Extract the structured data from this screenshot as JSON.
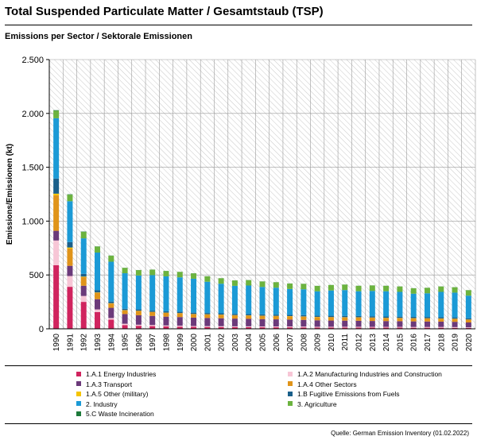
{
  "title": "Total Suspended Particulate Matter / Gesamtstaub (TSP)",
  "subtitle": "Emissions per Sector / Sektorale Emissionen",
  "source": "Quelle: German Emission Inventory (01.02.2022)",
  "chart_data": {
    "type": "bar",
    "stacked": true,
    "ylabel": "Emissions/Emissionen (kt)",
    "ylim": [
      0,
      2500
    ],
    "yticks": [
      0,
      500,
      1000,
      1500,
      2000,
      2500
    ],
    "ytick_labels": [
      "0",
      "500",
      "1.000",
      "1.500",
      "2.000",
      "2.500"
    ],
    "categories": [
      "1990",
      "1991",
      "1992",
      "1993",
      "1994",
      "1995",
      "1996",
      "1997",
      "1998",
      "1999",
      "2000",
      "2001",
      "2002",
      "2003",
      "2004",
      "2005",
      "2006",
      "2007",
      "2008",
      "2009",
      "2010",
      "2011",
      "2012",
      "2013",
      "2014",
      "2015",
      "2016",
      "2017",
      "2018",
      "2019",
      "2020"
    ],
    "background": "hatched",
    "series": [
      {
        "name": "1.A.1 Energy Industries",
        "color": "#d0245e",
        "values": [
          590,
          390,
          250,
          155,
          85,
          35,
          28,
          25,
          22,
          20,
          18,
          17,
          16,
          15,
          15,
          14,
          14,
          14,
          13,
          12,
          12,
          12,
          12,
          11,
          11,
          11,
          10,
          10,
          10,
          9,
          8
        ]
      },
      {
        "name": "1.A.2 Manufacturing Industries and Construction",
        "color": "#f7c6d6",
        "values": [
          230,
          100,
          55,
          25,
          15,
          12,
          10,
          10,
          9,
          9,
          8,
          8,
          8,
          8,
          8,
          8,
          8,
          8,
          8,
          7,
          7,
          7,
          7,
          7,
          7,
          7,
          7,
          7,
          7,
          7,
          6
        ]
      },
      {
        "name": "1.A.3 Transport",
        "color": "#6b3a7a",
        "values": [
          90,
          95,
          95,
          95,
          95,
          90,
          88,
          85,
          82,
          80,
          78,
          76,
          74,
          72,
          70,
          68,
          66,
          64,
          62,
          60,
          58,
          57,
          56,
          55,
          54,
          53,
          52,
          51,
          50,
          49,
          45
        ]
      },
      {
        "name": "1.A.4 Other Sectors",
        "color": "#e0941a",
        "values": [
          330,
          160,
          80,
          60,
          40,
          35,
          40,
          35,
          35,
          35,
          32,
          32,
          32,
          30,
          30,
          30,
          30,
          30,
          30,
          30,
          30,
          30,
          30,
          30,
          28,
          28,
          28,
          28,
          27,
          27,
          26
        ]
      },
      {
        "name": "1.A.5 Other (military)",
        "color": "#f5c400",
        "values": [
          15,
          10,
          5,
          3,
          3,
          2,
          2,
          2,
          2,
          2,
          2,
          2,
          2,
          2,
          2,
          2,
          2,
          2,
          2,
          2,
          2,
          2,
          2,
          2,
          2,
          2,
          2,
          2,
          2,
          2,
          2
        ]
      },
      {
        "name": "1.B Fugitive Emissions from Fuels",
        "color": "#1a5f8a",
        "values": [
          140,
          50,
          25,
          20,
          15,
          12,
          12,
          12,
          12,
          12,
          12,
          12,
          12,
          12,
          12,
          12,
          12,
          12,
          12,
          12,
          12,
          12,
          12,
          12,
          12,
          12,
          12,
          12,
          12,
          12,
          11
        ]
      },
      {
        "name": "2. Industry",
        "color": "#1b9ad6",
        "values": [
          560,
          380,
          330,
          350,
          370,
          330,
          315,
          330,
          325,
          320,
          315,
          290,
          275,
          260,
          265,
          255,
          250,
          240,
          240,
          225,
          235,
          240,
          230,
          235,
          235,
          230,
          215,
          220,
          235,
          230,
          210
        ]
      },
      {
        "name": "3. Agriculture",
        "color": "#6cb33f",
        "values": [
          70,
          60,
          60,
          55,
          55,
          50,
          50,
          50,
          50,
          50,
          50,
          50,
          50,
          50,
          50,
          50,
          50,
          50,
          50,
          50,
          50,
          50,
          50,
          50,
          50,
          50,
          50,
          50,
          50,
          50,
          50
        ]
      },
      {
        "name": "5.C Waste Incineration",
        "color": "#1d7a3a",
        "values": [
          5,
          4,
          3,
          2,
          2,
          1,
          1,
          1,
          1,
          1,
          1,
          1,
          1,
          1,
          1,
          1,
          1,
          1,
          1,
          1,
          1,
          1,
          1,
          1,
          1,
          1,
          1,
          1,
          1,
          1,
          1
        ]
      }
    ]
  }
}
